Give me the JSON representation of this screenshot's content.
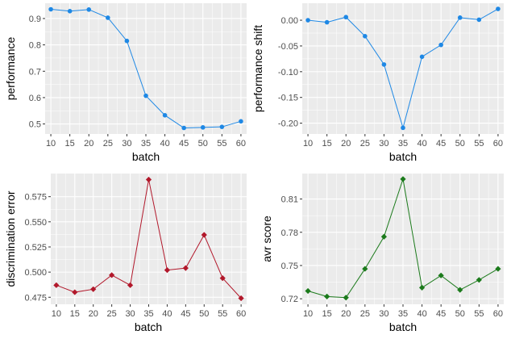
{
  "chart_data": [
    {
      "type": "line",
      "xlabel": "batch",
      "ylabel": "performance",
      "color": "#1E88E5",
      "marker": "circle",
      "x": [
        10,
        15,
        20,
        25,
        30,
        35,
        40,
        45,
        50,
        55,
        60
      ],
      "values": [
        0.935,
        0.928,
        0.934,
        0.903,
        0.815,
        0.607,
        0.533,
        0.485,
        0.487,
        0.489,
        0.51
      ],
      "xticks": [
        "10",
        "15",
        "20",
        "25",
        "30",
        "35",
        "40",
        "45",
        "50",
        "55",
        "60"
      ],
      "xticks_values": [
        10,
        15,
        20,
        25,
        30,
        35,
        40,
        45,
        50,
        55,
        60
      ],
      "yticks": [
        "0.5",
        "0.6",
        "0.7",
        "0.8",
        "0.9"
      ],
      "yticks_values": [
        0.5,
        0.6,
        0.7,
        0.8,
        0.9
      ],
      "xlim": [
        8.5,
        61.5
      ],
      "ylim": [
        0.462,
        0.958
      ],
      "grid": true
    },
    {
      "type": "line",
      "xlabel": "batch",
      "ylabel": "performance shift",
      "color": "#1E88E5",
      "marker": "circle",
      "x": [
        10,
        15,
        20,
        25,
        30,
        35,
        40,
        45,
        50,
        55,
        60
      ],
      "values": [
        0.0,
        -0.004,
        0.006,
        -0.031,
        -0.086,
        -0.209,
        -0.071,
        -0.048,
        0.005,
        0.001,
        0.022
      ],
      "xticks": [
        "10",
        "15",
        "20",
        "25",
        "30",
        "35",
        "40",
        "45",
        "50",
        "55",
        "60"
      ],
      "xticks_values": [
        10,
        15,
        20,
        25,
        30,
        35,
        40,
        45,
        50,
        55,
        60
      ],
      "yticks": [
        "0.00",
        "-0.05",
        "-0.10",
        "-0.15",
        "-0.20"
      ],
      "yticks_values": [
        0.0,
        -0.05,
        -0.1,
        -0.15,
        -0.2
      ],
      "xlim": [
        8.5,
        61.5
      ],
      "ylim": [
        -0.221,
        0.033
      ],
      "grid": true
    },
    {
      "type": "line",
      "xlabel": "batch",
      "ylabel": "discrimination error",
      "color": "#B2182B",
      "marker": "diamond",
      "x": [
        10,
        15,
        20,
        25,
        30,
        35,
        40,
        45,
        50,
        55,
        60
      ],
      "values": [
        0.487,
        0.48,
        0.483,
        0.497,
        0.487,
        0.592,
        0.502,
        0.504,
        0.537,
        0.494,
        0.474
      ],
      "xticks": [
        "10",
        "15",
        "20",
        "25",
        "30",
        "35",
        "40",
        "45",
        "50",
        "55",
        "60"
      ],
      "xticks_values": [
        10,
        15,
        20,
        25,
        30,
        35,
        40,
        45,
        50,
        55,
        60
      ],
      "yticks": [
        "0.475",
        "0.500",
        "0.525",
        "0.550",
        "0.575"
      ],
      "yticks_values": [
        0.475,
        0.5,
        0.525,
        0.55,
        0.575
      ],
      "xlim": [
        8.5,
        61.5
      ],
      "ylim": [
        0.468,
        0.598
      ],
      "grid": true
    },
    {
      "type": "line",
      "xlabel": "batch",
      "ylabel": "avr score",
      "color": "#1B7A1B",
      "marker": "diamond",
      "x": [
        10,
        15,
        20,
        25,
        30,
        35,
        40,
        45,
        50,
        55,
        60
      ],
      "values": [
        0.727,
        0.722,
        0.721,
        0.747,
        0.776,
        0.828,
        0.73,
        0.741,
        0.728,
        0.737,
        0.747
      ],
      "xticks": [
        "10",
        "15",
        "20",
        "25",
        "30",
        "35",
        "40",
        "45",
        "50",
        "55",
        "60"
      ],
      "xticks_values": [
        10,
        15,
        20,
        25,
        30,
        35,
        40,
        45,
        50,
        55,
        60
      ],
      "yticks": [
        "0.72",
        "0.75",
        "0.78",
        "0.81"
      ],
      "yticks_values": [
        0.72,
        0.75,
        0.78,
        0.81
      ],
      "xlim": [
        8.5,
        61.5
      ],
      "ylim": [
        0.715,
        0.833
      ],
      "grid": true
    }
  ]
}
